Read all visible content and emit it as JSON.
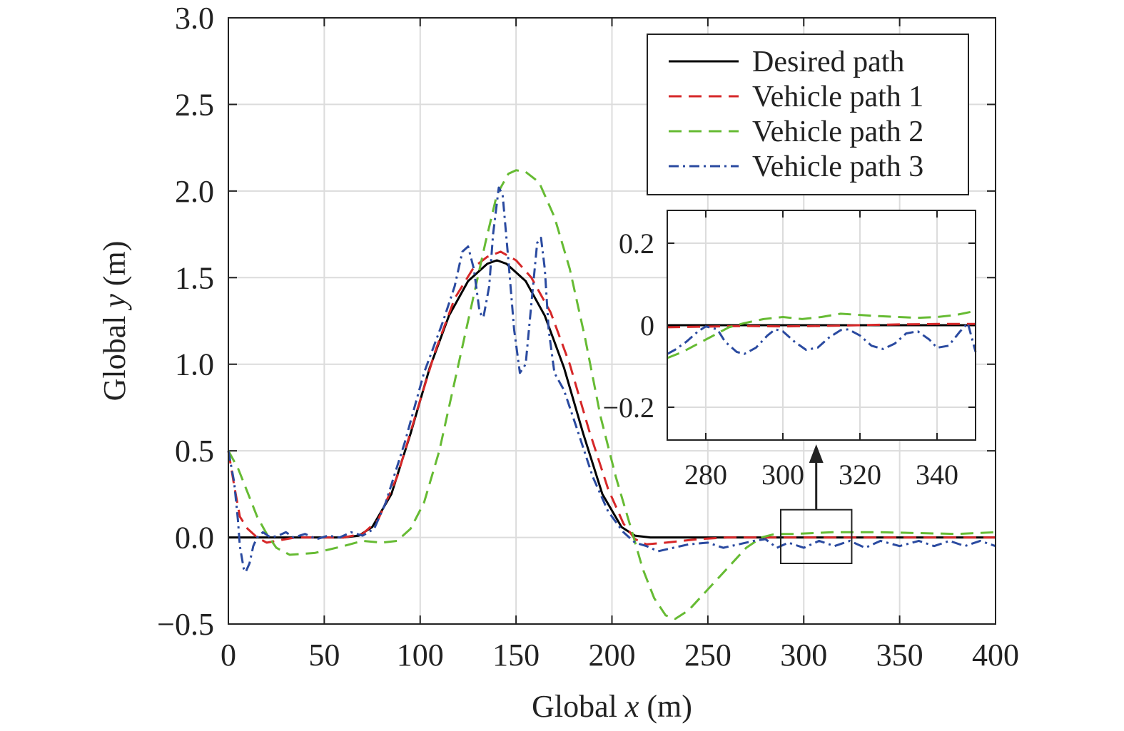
{
  "chart_data": {
    "type": "line",
    "xlabel_prefix": "Global ",
    "xlabel_var": "x",
    "xlabel_unit": " (m)",
    "ylabel_prefix": "Global ",
    "ylabel_var": "y",
    "ylabel_unit": " (m)",
    "xlim": [
      0,
      400
    ],
    "ylim": [
      -0.5,
      3.0
    ],
    "xticks": [
      0,
      50,
      100,
      150,
      200,
      250,
      300,
      350,
      400
    ],
    "xtick_labels": [
      "0",
      "50",
      "100",
      "150",
      "200",
      "250",
      "300",
      "350",
      "400"
    ],
    "yticks": [
      -0.5,
      0.0,
      0.5,
      1.0,
      1.5,
      2.0,
      2.5,
      3.0
    ],
    "ytick_labels": [
      "−0.5",
      "0.0",
      "0.5",
      "1.0",
      "1.5",
      "2.0",
      "2.5",
      "3.0"
    ],
    "grid": true,
    "legend_position": "top-right",
    "series": [
      {
        "name": "Desired path",
        "color": "#000000",
        "style": "solid",
        "points": [
          [
            0,
            0
          ],
          [
            60,
            0
          ],
          [
            68,
            0.01
          ],
          [
            75,
            0.06
          ],
          [
            85,
            0.25
          ],
          [
            95,
            0.6
          ],
          [
            105,
            0.98
          ],
          [
            115,
            1.28
          ],
          [
            125,
            1.48
          ],
          [
            135,
            1.58
          ],
          [
            140,
            1.6
          ],
          [
            145,
            1.58
          ],
          [
            155,
            1.48
          ],
          [
            165,
            1.28
          ],
          [
            175,
            0.98
          ],
          [
            185,
            0.6
          ],
          [
            195,
            0.25
          ],
          [
            205,
            0.06
          ],
          [
            212,
            0.01
          ],
          [
            220,
            0
          ],
          [
            400,
            0
          ]
        ]
      },
      {
        "name": "Vehicle path 1",
        "color": "#d62728",
        "style": "dash",
        "points": [
          [
            0,
            0.5
          ],
          [
            3,
            0.3
          ],
          [
            6,
            0.12
          ],
          [
            10,
            0.05
          ],
          [
            15,
            0.0
          ],
          [
            20,
            -0.03
          ],
          [
            25,
            -0.02
          ],
          [
            35,
            0.0
          ],
          [
            60,
            0.0
          ],
          [
            70,
            0.02
          ],
          [
            78,
            0.1
          ],
          [
            88,
            0.35
          ],
          [
            98,
            0.72
          ],
          [
            108,
            1.08
          ],
          [
            118,
            1.38
          ],
          [
            128,
            1.56
          ],
          [
            135,
            1.62
          ],
          [
            142,
            1.65
          ],
          [
            150,
            1.6
          ],
          [
            158,
            1.5
          ],
          [
            168,
            1.3
          ],
          [
            178,
            1.0
          ],
          [
            188,
            0.62
          ],
          [
            198,
            0.28
          ],
          [
            206,
            0.08
          ],
          [
            212,
            -0.01
          ],
          [
            218,
            -0.04
          ],
          [
            228,
            -0.03
          ],
          [
            245,
            -0.01
          ],
          [
            260,
            0.0
          ],
          [
            400,
            0.0
          ]
        ]
      },
      {
        "name": "Vehicle path 2",
        "color": "#66bb33",
        "style": "dash",
        "points": [
          [
            0,
            0.5
          ],
          [
            5,
            0.4
          ],
          [
            10,
            0.26
          ],
          [
            15,
            0.12
          ],
          [
            20,
            0.02
          ],
          [
            25,
            -0.06
          ],
          [
            32,
            -0.1
          ],
          [
            45,
            -0.09
          ],
          [
            60,
            -0.05
          ],
          [
            70,
            -0.02
          ],
          [
            80,
            -0.03
          ],
          [
            88,
            -0.02
          ],
          [
            95,
            0.05
          ],
          [
            102,
            0.2
          ],
          [
            110,
            0.5
          ],
          [
            118,
            0.9
          ],
          [
            126,
            1.3
          ],
          [
            134,
            1.7
          ],
          [
            140,
            1.98
          ],
          [
            146,
            2.1
          ],
          [
            150,
            2.12
          ],
          [
            155,
            2.11
          ],
          [
            162,
            2.05
          ],
          [
            170,
            1.85
          ],
          [
            178,
            1.55
          ],
          [
            186,
            1.15
          ],
          [
            194,
            0.7
          ],
          [
            202,
            0.35
          ],
          [
            210,
            0.05
          ],
          [
            216,
            -0.18
          ],
          [
            222,
            -0.35
          ],
          [
            228,
            -0.45
          ],
          [
            233,
            -0.47
          ],
          [
            240,
            -0.42
          ],
          [
            250,
            -0.3
          ],
          [
            260,
            -0.18
          ],
          [
            270,
            -0.06
          ],
          [
            278,
            0.0
          ],
          [
            285,
            0.02
          ],
          [
            295,
            0.02
          ],
          [
            305,
            0.025
          ],
          [
            315,
            0.03
          ],
          [
            325,
            0.03
          ],
          [
            340,
            0.03
          ],
          [
            360,
            0.025
          ],
          [
            380,
            0.02
          ],
          [
            390,
            0.025
          ],
          [
            400,
            0.03
          ]
        ]
      },
      {
        "name": "Vehicle path 3",
        "color": "#2a4aa0",
        "style": "dashdot",
        "points": [
          [
            0,
            0.5
          ],
          [
            3,
            0.32
          ],
          [
            5,
            0.1
          ],
          [
            6,
            -0.05
          ],
          [
            8,
            -0.18
          ],
          [
            9,
            -0.2
          ],
          [
            11,
            -0.15
          ],
          [
            13,
            -0.05
          ],
          [
            15,
            0.0
          ],
          [
            18,
            0.03
          ],
          [
            22,
            0.0
          ],
          [
            26,
            0.01
          ],
          [
            30,
            0.03
          ],
          [
            34,
            0.0
          ],
          [
            40,
            0.02
          ],
          [
            46,
            -0.01
          ],
          [
            52,
            0.01
          ],
          [
            58,
            0.0
          ],
          [
            64,
            0.03
          ],
          [
            70,
            0.01
          ],
          [
            76,
            0.05
          ],
          [
            82,
            0.2
          ],
          [
            92,
            0.55
          ],
          [
            102,
            0.95
          ],
          [
            112,
            1.25
          ],
          [
            118,
            1.45
          ],
          [
            122,
            1.65
          ],
          [
            125,
            1.68
          ],
          [
            128,
            1.55
          ],
          [
            131,
            1.3
          ],
          [
            133,
            1.27
          ],
          [
            136,
            1.45
          ],
          [
            138,
            1.75
          ],
          [
            141,
            2.02
          ],
          [
            143,
            1.98
          ],
          [
            146,
            1.6
          ],
          [
            149,
            1.2
          ],
          [
            152,
            0.95
          ],
          [
            155,
            1.0
          ],
          [
            158,
            1.35
          ],
          [
            161,
            1.7
          ],
          [
            163,
            1.73
          ],
          [
            165,
            1.55
          ],
          [
            167,
            1.2
          ],
          [
            170,
            0.95
          ],
          [
            175,
            0.85
          ],
          [
            182,
            0.62
          ],
          [
            190,
            0.35
          ],
          [
            198,
            0.15
          ],
          [
            206,
            0.03
          ],
          [
            212,
            -0.03
          ],
          [
            218,
            -0.05
          ],
          [
            224,
            -0.08
          ],
          [
            232,
            -0.06
          ],
          [
            240,
            -0.04
          ],
          [
            250,
            -0.03
          ],
          [
            258,
            -0.06
          ],
          [
            266,
            -0.04
          ],
          [
            274,
            -0.02
          ],
          [
            280,
            -0.01
          ],
          [
            286,
            -0.06
          ],
          [
            292,
            -0.03
          ],
          [
            300,
            -0.06
          ],
          [
            308,
            -0.02
          ],
          [
            316,
            -0.05
          ],
          [
            324,
            -0.02
          ],
          [
            332,
            -0.06
          ],
          [
            340,
            -0.02
          ],
          [
            350,
            -0.05
          ],
          [
            360,
            -0.02
          ],
          [
            368,
            -0.05
          ],
          [
            376,
            -0.02
          ],
          [
            384,
            -0.05
          ],
          [
            392,
            -0.02
          ],
          [
            400,
            -0.05
          ]
        ]
      }
    ],
    "zoom_box": {
      "x": [
        288,
        325
      ],
      "y": [
        -0.15,
        0.16
      ]
    },
    "inset": {
      "xlim": [
        270,
        350
      ],
      "ylim": [
        -0.28,
        0.28
      ],
      "xticks": [
        280,
        300,
        320,
        340
      ],
      "xtick_labels": [
        "280",
        "300",
        "320",
        "340"
      ],
      "yticks": [
        0.2,
        0.0,
        -0.2
      ],
      "ytick_labels": [
        "0.2",
        "0",
        "−0.2"
      ],
      "series": [
        {
          "name": "Desired path",
          "color": "#000000",
          "style": "solid",
          "points": [
            [
              270,
              0
            ],
            [
              350,
              0
            ]
          ]
        },
        {
          "name": "Vehicle path 1",
          "color": "#d62728",
          "style": "dash",
          "points": [
            [
              270,
              -0.005
            ],
            [
              290,
              -0.002
            ],
            [
              300,
              -0.003
            ],
            [
              310,
              -0.002
            ],
            [
              320,
              0.0
            ],
            [
              330,
              0.002
            ],
            [
              340,
              0.003
            ],
            [
              350,
              0.003
            ]
          ]
        },
        {
          "name": "Vehicle path 2",
          "color": "#66bb33",
          "style": "dash",
          "points": [
            [
              270,
              -0.08
            ],
            [
              274,
              -0.065
            ],
            [
              278,
              -0.045
            ],
            [
              282,
              -0.025
            ],
            [
              286,
              -0.005
            ],
            [
              290,
              0.005
            ],
            [
              295,
              0.015
            ],
            [
              300,
              0.02
            ],
            [
              305,
              0.015
            ],
            [
              310,
              0.02
            ],
            [
              315,
              0.028
            ],
            [
              320,
              0.025
            ],
            [
              325,
              0.022
            ],
            [
              330,
              0.02
            ],
            [
              335,
              0.018
            ],
            [
              340,
              0.02
            ],
            [
              345,
              0.025
            ],
            [
              350,
              0.035
            ]
          ]
        },
        {
          "name": "Vehicle path 3",
          "color": "#2a4aa0",
          "style": "dashdot",
          "points": [
            [
              270,
              -0.07
            ],
            [
              272,
              -0.06
            ],
            [
              275,
              -0.04
            ],
            [
              278,
              -0.015
            ],
            [
              280,
              -0.003
            ],
            [
              283,
              -0.01
            ],
            [
              285,
              -0.04
            ],
            [
              288,
              -0.065
            ],
            [
              290,
              -0.07
            ],
            [
              293,
              -0.055
            ],
            [
              296,
              -0.025
            ],
            [
              298,
              -0.01
            ],
            [
              300,
              -0.015
            ],
            [
              303,
              -0.04
            ],
            [
              306,
              -0.06
            ],
            [
              309,
              -0.055
            ],
            [
              312,
              -0.03
            ],
            [
              315,
              -0.012
            ],
            [
              317,
              -0.01
            ],
            [
              320,
              -0.025
            ],
            [
              323,
              -0.05
            ],
            [
              326,
              -0.058
            ],
            [
              329,
              -0.045
            ],
            [
              332,
              -0.02
            ],
            [
              335,
              -0.015
            ],
            [
              338,
              -0.035
            ],
            [
              340,
              -0.055
            ],
            [
              343,
              -0.05
            ],
            [
              346,
              -0.015
            ],
            [
              348,
              0.005
            ],
            [
              349,
              -0.03
            ],
            [
              350,
              -0.065
            ]
          ]
        }
      ]
    }
  }
}
